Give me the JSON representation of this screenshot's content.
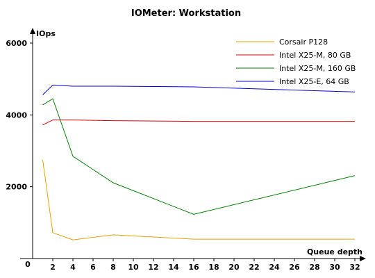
{
  "chart_data": {
    "type": "line",
    "title": "IOMeter: Workstation",
    "xlabel": "Queue depth",
    "ylabel": "IOps",
    "origin_label": "0",
    "x_ticks": [
      2,
      4,
      6,
      8,
      10,
      12,
      14,
      16,
      18,
      20,
      22,
      24,
      26,
      28,
      30,
      32
    ],
    "y_ticks": [
      2000,
      4000,
      6000
    ],
    "xlim": [
      0,
      32
    ],
    "ylim": [
      0,
      6000
    ],
    "grid": false,
    "legend_position": "top-right",
    "series": [
      {
        "name": "Corsair P128",
        "color": "#e8a000",
        "x": [
          1,
          2,
          4,
          8,
          16,
          32
        ],
        "y": [
          2750,
          720,
          520,
          660,
          540,
          540
        ]
      },
      {
        "name": "Intel X25-M, 80 GB",
        "color": "#dd0000",
        "x": [
          1,
          2,
          4,
          8,
          16,
          32
        ],
        "y": [
          3720,
          3860,
          3860,
          3840,
          3820,
          3820
        ]
      },
      {
        "name": "Intel X25-M, 160 GB",
        "color": "#008000",
        "x": [
          1,
          2,
          4,
          8,
          16,
          32
        ],
        "y": [
          4280,
          4450,
          2850,
          2110,
          1230,
          2310
        ]
      },
      {
        "name": "Intel X25-E, 64 GB",
        "color": "#0000cc",
        "x": [
          1,
          2,
          4,
          8,
          16,
          32
        ],
        "y": [
          4560,
          4830,
          4800,
          4800,
          4780,
          4640
        ]
      }
    ]
  }
}
